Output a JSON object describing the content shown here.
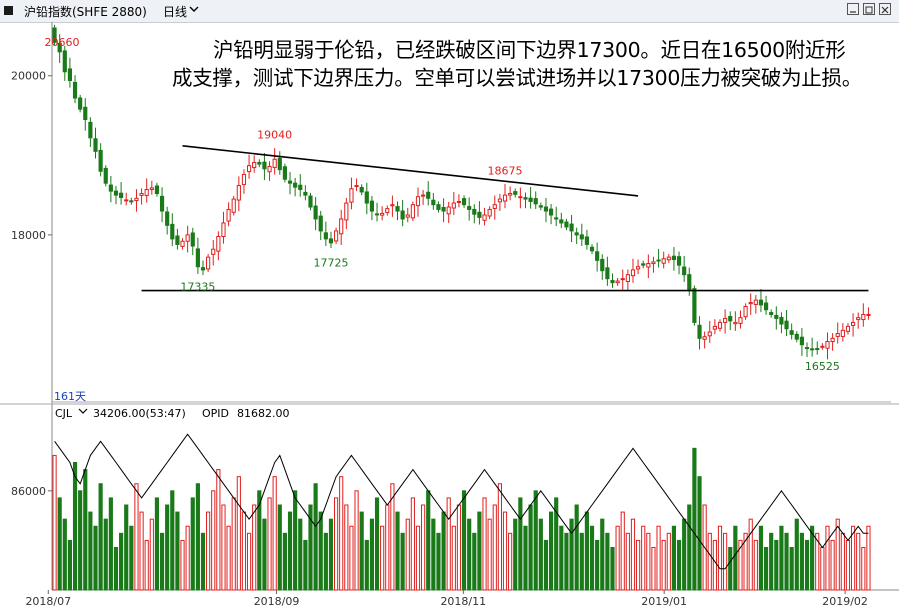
{
  "header": {
    "title": "沪铅指数(SHFE 2880)",
    "period": "日线",
    "period_chevron_icon": "chevron-down-icon",
    "window_icons": [
      "minimize-icon",
      "restore-icon",
      "close-icon"
    ]
  },
  "annotation": "沪铅明显弱于伦铅，已经跌破区间下边界17300。近日在16500附近形成支撑，测试下边界压力。空单可以尝试进场并以17300压力被突破为止损。",
  "chart_data": [
    {
      "type": "candlestick",
      "title": "沪铅指数(SHFE 2880)",
      "bar_period": "日线",
      "days_label": "161天",
      "colors": {
        "up": "#e0201e",
        "down": "#1a7a1a"
      },
      "ylim": [
        15900,
        20600
      ],
      "yticks": [
        20000,
        18000
      ],
      "xtick_labels": [
        "2018/07",
        "2018/09",
        "2018/11",
        "2019/01",
        "2019/02"
      ],
      "price_labels": [
        {
          "text": "20660",
          "index": 0,
          "kind": "high"
        },
        {
          "text": "19040",
          "index": 43,
          "kind": "high"
        },
        {
          "text": "18675",
          "index": 88,
          "kind": "high"
        },
        {
          "text": "17335",
          "index": 28,
          "kind": "low"
        },
        {
          "text": "17725",
          "index": 54,
          "kind": "low"
        },
        {
          "text": "16525",
          "index": 150,
          "kind": "low"
        }
      ],
      "trendlines": [
        {
          "name": "upper-boundary",
          "from": {
            "index": 25,
            "value": 19120
          },
          "to": {
            "index": 114,
            "value": 18490
          }
        },
        {
          "name": "lower-boundary",
          "from": {
            "index": 17,
            "value": 17300
          },
          "to": {
            "index": 159,
            "value": 17300
          }
        }
      ],
      "closes": [
        20420,
        20300,
        20050,
        19940,
        19720,
        19580,
        19450,
        19220,
        19050,
        18800,
        18650,
        18550,
        18500,
        18470,
        18440,
        18420,
        18460,
        18520,
        18570,
        18590,
        18520,
        18300,
        18120,
        17950,
        17880,
        17920,
        18000,
        17860,
        17600,
        17560,
        17720,
        17820,
        17980,
        18150,
        18320,
        18450,
        18620,
        18760,
        18870,
        18910,
        18890,
        18830,
        18860,
        18950,
        18820,
        18700,
        18650,
        18600,
        18570,
        18500,
        18350,
        18200,
        18050,
        17950,
        17900,
        18050,
        18200,
        18400,
        18580,
        18620,
        18540,
        18400,
        18300,
        18260,
        18270,
        18330,
        18380,
        18300,
        18200,
        18250,
        18380,
        18480,
        18500,
        18460,
        18380,
        18320,
        18300,
        18350,
        18400,
        18420,
        18380,
        18320,
        18260,
        18220,
        18250,
        18320,
        18380,
        18450,
        18500,
        18520,
        18510,
        18480,
        18450,
        18420,
        18390,
        18350,
        18300,
        18250,
        18200,
        18150,
        18100,
        18050,
        18000,
        17950,
        17880,
        17800,
        17680,
        17550,
        17450,
        17400,
        17420,
        17450,
        17500,
        17560,
        17600,
        17620,
        17640,
        17660,
        17680,
        17700,
        17720,
        17690,
        17620,
        17500,
        17300,
        16900,
        16700,
        16720,
        16780,
        16850,
        16900,
        16950,
        16920,
        16900,
        16960,
        17100,
        17150,
        17180,
        17120,
        17060,
        17000,
        16950,
        16880,
        16820,
        16750,
        16690,
        16620,
        16580,
        16560,
        16560,
        16600,
        16660,
        16700,
        16760,
        16800,
        16850,
        16900,
        16960,
        17000,
        17000
      ],
      "volume_panel": {
        "label": "CJL",
        "volume_value": "34206.00(53:47)",
        "open_interest_label": "OPID",
        "open_interest_value": "81682.00",
        "ytick": 86000,
        "ylim": [
          72000,
          96000
        ],
        "volume": [
          91000,
          85000,
          82000,
          79000,
          90000,
          86000,
          89000,
          83000,
          81000,
          87000,
          82000,
          85000,
          78000,
          80000,
          84000,
          81000,
          87000,
          83000,
          79000,
          82000,
          85000,
          80000,
          84000,
          86000,
          83000,
          79000,
          81000,
          85000,
          87000,
          80000,
          83000,
          86000,
          89000,
          84000,
          81000,
          85000,
          88000,
          83000,
          80000,
          84000,
          86000,
          82000,
          85000,
          88000,
          84000,
          80000,
          83000,
          86000,
          82000,
          79000,
          84000,
          87000,
          83000,
          80000,
          82000,
          85000,
          88000,
          84000,
          81000,
          86000,
          83000,
          79000,
          82000,
          85000,
          81000,
          84000,
          87000,
          83000,
          80000,
          82000,
          85000,
          81000,
          84000,
          86000,
          82000,
          80000,
          83000,
          85000,
          81000,
          84000,
          86000,
          82000,
          80000,
          83000,
          85000,
          82000,
          84000,
          87000,
          83000,
          80000,
          82000,
          85000,
          81000,
          84000,
          86000,
          82000,
          79000,
          83000,
          85000,
          81000,
          80000,
          82000,
          84000,
          80000,
          83000,
          81000,
          79000,
          82000,
          80000,
          78000,
          81000,
          83000,
          80000,
          82000,
          79000,
          81000,
          80000,
          78000,
          81000,
          79000,
          80000,
          81000,
          79000,
          82000,
          84000,
          92000,
          88000,
          84000,
          80000,
          79000,
          81000,
          80000,
          78000,
          81000,
          79000,
          80000,
          82000,
          79000,
          81000,
          78000,
          80000,
          79000,
          81000,
          80000,
          78000,
          82000,
          80000,
          79000,
          81000,
          80000,
          78000,
          81000,
          79000,
          82000,
          80000,
          79000,
          81000,
          80000,
          78000,
          81000
        ],
        "open_interest": [
          93000,
          92000,
          91000,
          90000,
          88000,
          87000,
          89000,
          91000,
          92000,
          93000,
          92000,
          91000,
          90000,
          89000,
          88000,
          87000,
          86000,
          85000,
          86000,
          87000,
          88000,
          89000,
          90000,
          91000,
          92000,
          93000,
          94000,
          93000,
          92000,
          91000,
          90000,
          89000,
          88000,
          87000,
          86000,
          85000,
          84000,
          83000,
          82000,
          83000,
          84000,
          86000,
          88000,
          90000,
          91000,
          89000,
          87000,
          85000,
          84000,
          83000,
          82000,
          81000,
          82000,
          84000,
          86000,
          88000,
          89000,
          90000,
          91000,
          90000,
          89000,
          88000,
          87000,
          86000,
          85000,
          84000,
          85000,
          86000,
          87000,
          88000,
          89000,
          88000,
          87000,
          86000,
          85000,
          84000,
          83000,
          82000,
          83000,
          84000,
          85000,
          86000,
          87000,
          88000,
          89000,
          88000,
          87000,
          86000,
          85000,
          84000,
          83000,
          82000,
          83000,
          84000,
          85000,
          86000,
          85000,
          84000,
          83000,
          82000,
          81000,
          80000,
          81000,
          82000,
          83000,
          84000,
          85000,
          86000,
          87000,
          88000,
          89000,
          90000,
          91000,
          92000,
          91000,
          90000,
          89000,
          88000,
          87000,
          86000,
          85000,
          84000,
          83000,
          82000,
          81000,
          80000,
          79000,
          78000,
          77000,
          76000,
          75000,
          75000,
          76000,
          77000,
          78000,
          79000,
          80000,
          81000,
          82000,
          83000,
          84000,
          85000,
          86000,
          85000,
          84000,
          83000,
          82000,
          81000,
          80000,
          79000,
          78000,
          79000,
          80000,
          81000,
          80000,
          79000,
          80000,
          81000,
          80000,
          80000
        ]
      }
    }
  ]
}
